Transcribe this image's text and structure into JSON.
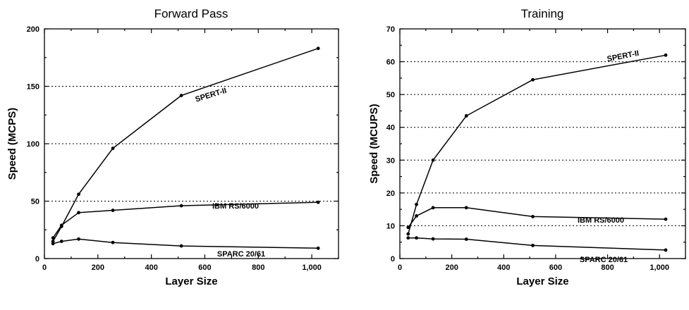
{
  "chart_data": [
    {
      "type": "line",
      "title": "Forward Pass",
      "xlabel": "Layer Size",
      "ylabel": "Speed (MCPS)",
      "xlim": [
        0,
        1100
      ],
      "ylim": [
        0,
        200
      ],
      "xticks": [
        0,
        200,
        400,
        600,
        800,
        1000
      ],
      "xtick_labels": [
        "0",
        "200",
        "400",
        "600",
        "800",
        "1,000"
      ],
      "yticks": [
        0,
        50,
        100,
        150,
        200
      ],
      "ytick_labels": [
        "0",
        "50",
        "100",
        "150",
        "200"
      ],
      "grid": "horizontal dotted lines at major y ticks",
      "series": [
        {
          "name": "SPERT-II",
          "x": [
            32,
            64,
            128,
            256,
            512,
            1024
          ],
          "y": [
            15,
            28,
            56,
            96,
            142,
            183
          ]
        },
        {
          "name": "IBM RS/6000",
          "x": [
            32,
            64,
            128,
            256,
            512,
            1024
          ],
          "y": [
            18,
            29,
            40,
            42,
            46,
            49
          ]
        },
        {
          "name": "SPARC 20/61",
          "x": [
            32,
            64,
            128,
            256,
            512,
            1024
          ],
          "y": [
            13,
            15,
            17,
            14,
            11,
            9
          ]
        }
      ]
    },
    {
      "type": "line",
      "title": "Training",
      "xlabel": "Layer Size",
      "ylabel": "Speed (MCUPS)",
      "xlim": [
        0,
        1100
      ],
      "ylim": [
        0,
        70
      ],
      "xticks": [
        0,
        200,
        400,
        600,
        800,
        1000
      ],
      "xtick_labels": [
        "0",
        "200",
        "400",
        "600",
        "800",
        "1,000"
      ],
      "yticks": [
        0,
        10,
        20,
        30,
        40,
        50,
        60,
        70
      ],
      "ytick_labels": [
        "0",
        "10",
        "20",
        "30",
        "40",
        "50",
        "60",
        "70"
      ],
      "grid": "horizontal dotted lines at major y ticks",
      "series": [
        {
          "name": "SPERT-II",
          "x": [
            32,
            64,
            128,
            256,
            512,
            1024
          ],
          "y": [
            7.5,
            16.5,
            30,
            43.5,
            54.5,
            62
          ]
        },
        {
          "name": "IBM RS/6000",
          "x": [
            32,
            64,
            128,
            256,
            512,
            1024
          ],
          "y": [
            9.5,
            13,
            15.5,
            15.5,
            12.8,
            12
          ]
        },
        {
          "name": "SPARC 20/61",
          "x": [
            32,
            64,
            128,
            256,
            512,
            1024
          ],
          "y": [
            6.3,
            6.3,
            6,
            5.9,
            4,
            2.6
          ]
        }
      ]
    }
  ]
}
